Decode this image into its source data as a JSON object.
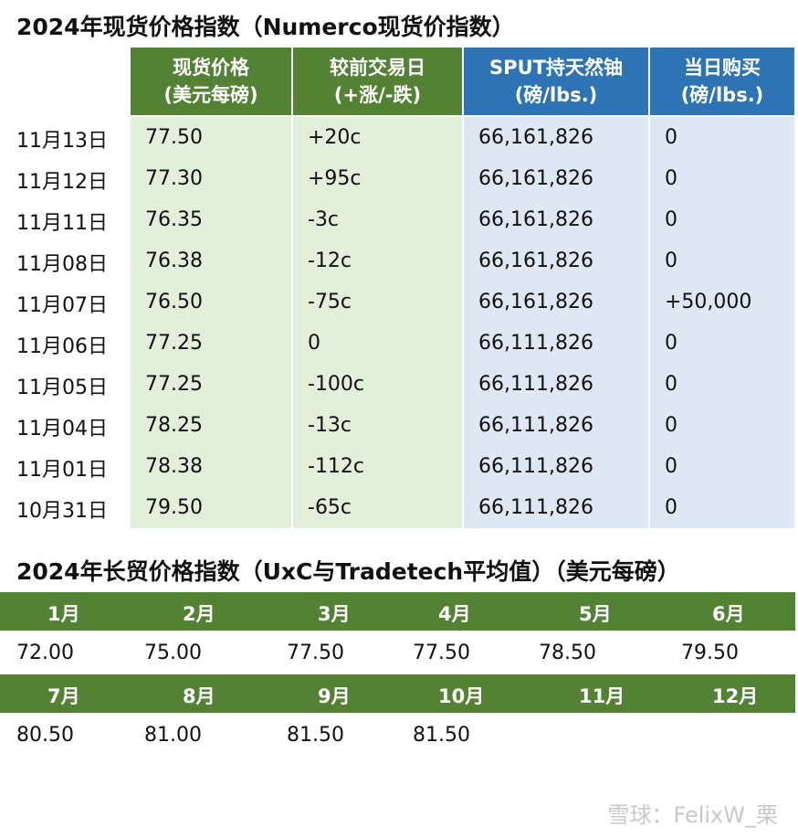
{
  "spot": {
    "title": "2024年现货价格指数（Numerco现货价指数）",
    "headers": [
      {
        "line1": "现货价格",
        "line2": "(美元每磅)"
      },
      {
        "line1": "较前交易日",
        "line2": "(+涨/-跌)"
      },
      {
        "line1": "SPUT持天然铀",
        "line2": "(磅/lbs.)"
      },
      {
        "line1": "当日购买",
        "line2": "(磅/lbs.)"
      }
    ],
    "rows": [
      {
        "date": "11月13日",
        "price": "77.50",
        "change": "+20c",
        "holdings": "66,161,826",
        "bought": "0"
      },
      {
        "date": "11月12日",
        "price": "77.30",
        "change": "+95c",
        "holdings": "66,161,826",
        "bought": "0"
      },
      {
        "date": "11月11日",
        "price": "76.35",
        "change": "-3c",
        "holdings": "66,161,826",
        "bought": "0"
      },
      {
        "date": "11月08日",
        "price": "76.38",
        "change": "-12c",
        "holdings": "66,161,826",
        "bought": "0"
      },
      {
        "date": "11月07日",
        "price": "76.50",
        "change": "-75c",
        "holdings": "66,161,826",
        "bought": "+50,000"
      },
      {
        "date": "11月06日",
        "price": "77.25",
        "change": "0",
        "holdings": "66,111,826",
        "bought": "0"
      },
      {
        "date": "11月05日",
        "price": "77.25",
        "change": "-100c",
        "holdings": "66,111,826",
        "bought": "0"
      },
      {
        "date": "11月04日",
        "price": "78.25",
        "change": "-13c",
        "holdings": "66,111,826",
        "bought": "0"
      },
      {
        "date": "11月01日",
        "price": "78.38",
        "change": "-112c",
        "holdings": "66,111,826",
        "bought": "0"
      },
      {
        "date": "10月31日",
        "price": "79.50",
        "change": "-65c",
        "holdings": "66,111,826",
        "bought": "0"
      }
    ]
  },
  "longterm": {
    "title": "2024年长贸价格指数（UxC与Tradetech平均值）（美元每磅）",
    "months_row1": [
      "1月",
      "2月",
      "3月",
      "4月",
      "5月",
      "6月"
    ],
    "values_row1": [
      "72.00",
      "75.00",
      "77.50",
      "77.50",
      "78.50",
      "79.50"
    ],
    "months_row2": [
      "7月",
      "8月",
      "9月",
      "10月",
      "11月",
      "12月"
    ],
    "values_row2": [
      "80.50",
      "81.00",
      "81.50",
      "81.50",
      "",
      ""
    ]
  },
  "watermark": "雪球：FelixW_栗",
  "colors": {
    "green_header": "#548235",
    "blue_header": "#2e74b5",
    "green_fill": "#e2efda",
    "blue_fill": "#dde8f4"
  }
}
